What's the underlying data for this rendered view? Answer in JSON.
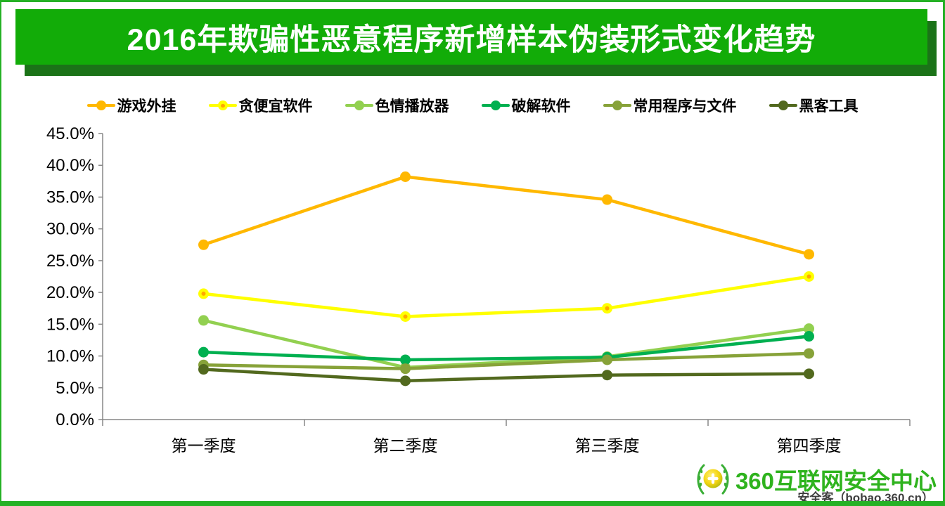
{
  "header": {
    "title": "2016年欺骗性恶意程序新增样本伪装形式变化趋势"
  },
  "chart_data": {
    "type": "line",
    "categories": [
      "第一季度",
      "第二季度",
      "第三季度",
      "第四季度"
    ],
    "series": [
      {
        "name": "游戏外挂",
        "color": "#FFB800",
        "values": [
          27.5,
          38.2,
          34.6,
          26.0
        ]
      },
      {
        "name": "贪便宜软件",
        "color": "#FFFF00",
        "marker_center": "#FFA800",
        "values": [
          19.8,
          16.2,
          17.5,
          22.5
        ]
      },
      {
        "name": "色情播放器",
        "color": "#92D050",
        "values": [
          15.6,
          8.2,
          9.9,
          14.3
        ]
      },
      {
        "name": "破解软件",
        "color": "#00B050",
        "values": [
          10.6,
          9.4,
          9.8,
          13.1
        ]
      },
      {
        "name": "常用程序与文件",
        "color": "#87A239",
        "values": [
          8.6,
          8.0,
          9.4,
          10.4
        ]
      },
      {
        "name": "黑客工具",
        "color": "#52691E",
        "values": [
          7.9,
          6.1,
          7.0,
          7.2
        ]
      }
    ],
    "ylim": [
      0,
      45
    ],
    "ytick_step": 5,
    "ytick_labels": [
      "0.0%",
      "5.0%",
      "10.0%",
      "15.0%",
      "20.0%",
      "25.0%",
      "30.0%",
      "35.0%",
      "40.0%",
      "45.0%"
    ],
    "grid": false,
    "legend_position": "top"
  },
  "footer": {
    "brand": "360互联网安全中心",
    "watermark": "安全客（bobao.360.cn）"
  },
  "theme": {
    "banner_green": "#12AC08",
    "banner_shadow_green": "#1B7318",
    "frame_green": "#25B125",
    "brand_green": "#2FB31E",
    "axis_gray": "#878787"
  }
}
